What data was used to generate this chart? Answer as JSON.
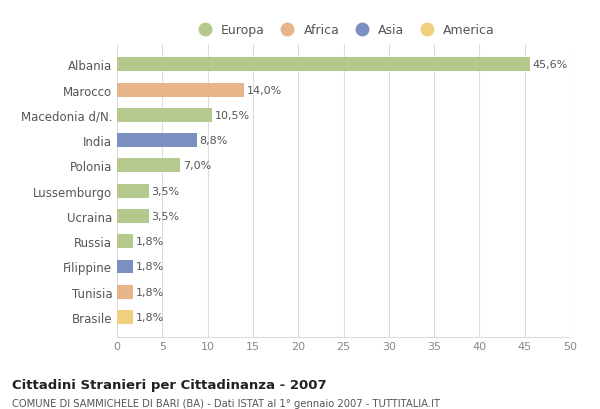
{
  "countries": [
    "Albania",
    "Marocco",
    "Macedonia d/N.",
    "India",
    "Polonia",
    "Lussemburgo",
    "Ucraina",
    "Russia",
    "Filippine",
    "Tunisia",
    "Brasile"
  ],
  "values": [
    45.6,
    14.0,
    10.5,
    8.8,
    7.0,
    3.5,
    3.5,
    1.8,
    1.8,
    1.8,
    1.8
  ],
  "labels": [
    "45,6%",
    "14,0%",
    "10,5%",
    "8,8%",
    "7,0%",
    "3,5%",
    "3,5%",
    "1,8%",
    "1,8%",
    "1,8%",
    "1,8%"
  ],
  "colors": [
    "#b5c98e",
    "#e8b48a",
    "#b5c98e",
    "#7b8fc0",
    "#b5c98e",
    "#b5c98e",
    "#b5c98e",
    "#b5c98e",
    "#7b8fc0",
    "#e8b48a",
    "#f0d080"
  ],
  "legend_labels": [
    "Europa",
    "Africa",
    "Asia",
    "America"
  ],
  "legend_colors": [
    "#b5c98e",
    "#e8b48a",
    "#7b8fc0",
    "#f0d080"
  ],
  "xlim": [
    0,
    50
  ],
  "xticks": [
    0,
    5,
    10,
    15,
    20,
    25,
    30,
    35,
    40,
    45,
    50
  ],
  "title": "Cittadini Stranieri per Cittadinanza - 2007",
  "subtitle": "COMUNE DI SAMMICHELE DI BARI (BA) - Dati ISTAT al 1° gennaio 2007 - TUTTITALIA.IT",
  "bg_color": "#ffffff",
  "bar_bg_color": "#ffffff",
  "grid_color": "#dddddd",
  "label_text_color": "#555555",
  "ytick_color": "#555555"
}
